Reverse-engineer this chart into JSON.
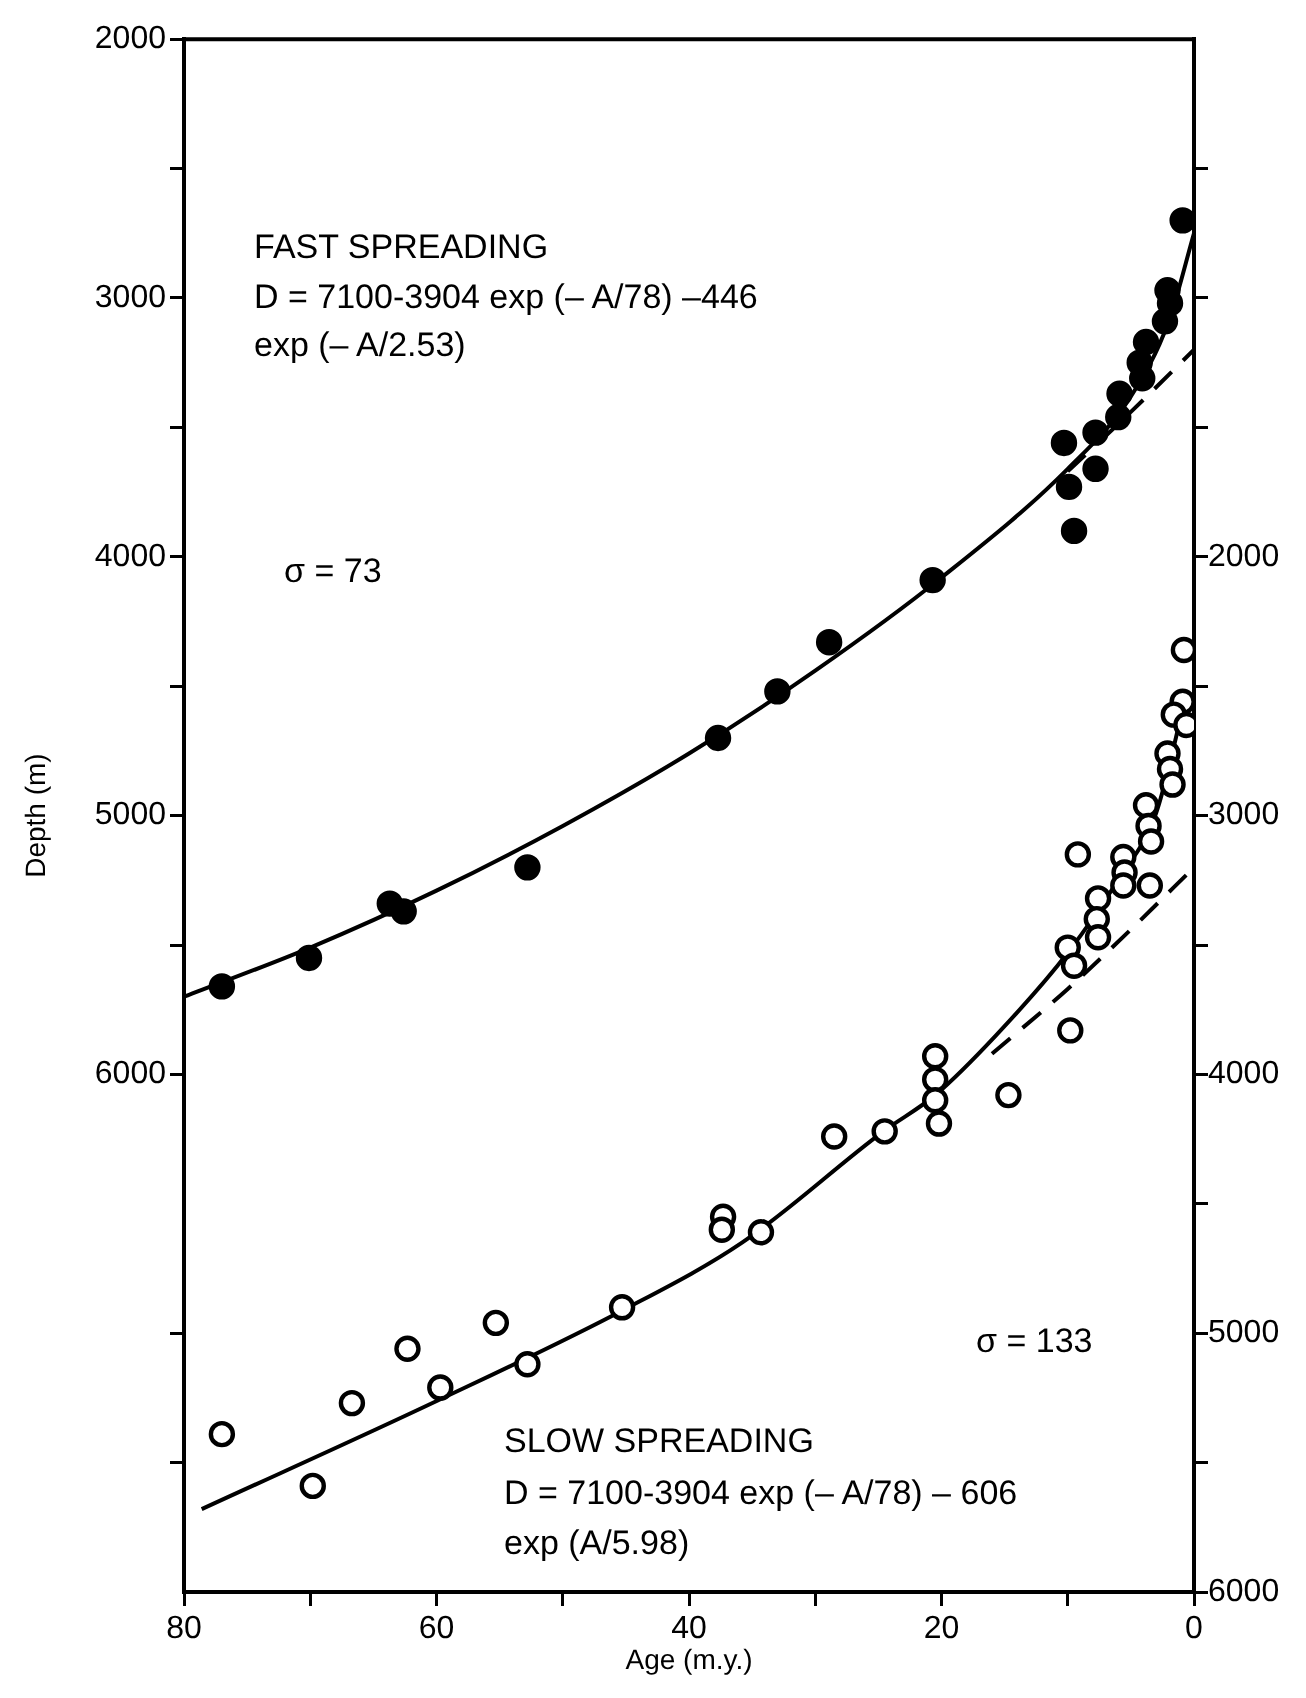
{
  "chart_data": {
    "type": "scatter",
    "xlabel": "Age (m.y.)",
    "ylabel": "Depth (m)",
    "xlim": [
      80,
      0
    ],
    "xticks": [
      80,
      {
        "value": 70,
        "label": null
      },
      60,
      {
        "value": 50,
        "label": null
      },
      40,
      {
        "value": 30,
        "label": null
      },
      20,
      {
        "value": 10,
        "label": null
      },
      0
    ],
    "ylim": [
      8000,
      2000
    ],
    "yticks": [
      2000,
      {
        "value": 2500,
        "label": null
      },
      3000,
      {
        "value": 3500,
        "label": null
      },
      4000,
      {
        "value": 4500,
        "label": null
      },
      5000,
      {
        "value": 5500,
        "label": null
      },
      6000,
      {
        "value": 7000,
        "label": null
      },
      {
        "value": 7500,
        "label": null
      }
    ],
    "y2lim": [
      6000,
      0
    ],
    "y2ticks": [
      {
        "value": 500,
        "label": null
      },
      {
        "value": 1000,
        "label": null
      },
      {
        "value": 1500,
        "label": null
      },
      2000,
      {
        "value": 2500,
        "label": null
      },
      3000,
      {
        "value": 3500,
        "label": null
      },
      4000,
      {
        "value": 4500,
        "label": null
      },
      5000,
      {
        "value": 5500,
        "label": null
      },
      6000
    ],
    "grid": false,
    "legend": false,
    "series": [
      {
        "type": "scatter",
        "marker": "circle",
        "color": "#000000",
        "x": [
          0.9,
          2.1,
          1.9,
          2.3,
          3.8,
          4.3,
          4.1,
          5.9,
          6.0,
          7.8,
          10.3,
          7.8,
          9.9,
          9.5,
          20.7,
          28.9,
          33.0,
          37.7,
          52.8,
          63.7,
          62.6,
          70.1,
          77.0
        ],
        "values": [
          2700,
          2970,
          3020,
          3090,
          3170,
          3250,
          3310,
          3370,
          3460,
          3520,
          3560,
          3660,
          3730,
          3900,
          4090,
          4330,
          4520,
          4700,
          5200,
          5340,
          5370,
          5550,
          5660
        ]
      },
      {
        "type": "line",
        "marker": "none",
        "line_style": "solid",
        "color": "#000000",
        "x": [
          80,
          70,
          60,
          50,
          40,
          30,
          20,
          10,
          5,
          2,
          0
        ],
        "values": [
          5700,
          5510,
          5290,
          5040,
          4760,
          4440,
          4080,
          3660,
          3380,
          3090,
          2750
        ]
      },
      {
        "type": "line",
        "marker": "none",
        "line_style": "dashed",
        "color": "#000000",
        "x": [
          10,
          5,
          0
        ],
        "values": [
          3670,
          3440,
          3200
        ]
      },
      {
        "type": "scatter",
        "marker": "circle",
        "axis": "y2",
        "color": "#ffffff",
        "x": [
          0.8,
          0.9,
          1.6,
          0.6,
          2.1,
          1.9,
          1.7,
          3.8,
          3.6,
          3.4,
          9.2,
          5.6,
          5.5,
          5.6,
          3.5,
          7.6,
          7.7,
          7.6,
          10.0,
          9.5,
          9.8,
          20.5,
          20.5,
          20.5,
          20.2,
          14.7,
          24.5,
          28.5,
          37.3,
          37.4,
          34.3,
          45.3,
          55.3,
          62.3,
          52.8,
          59.7,
          66.7,
          77.0,
          69.8
        ],
        "values": [
          2360,
          2560,
          2610,
          2650,
          2760,
          2820,
          2880,
          2960,
          3040,
          3100,
          3150,
          3160,
          3220,
          3270,
          3270,
          3320,
          3400,
          3470,
          3510,
          3580,
          3830,
          3930,
          4020,
          4100,
          4190,
          4080,
          4220,
          4240,
          4550,
          4600,
          4610,
          4900,
          4960,
          5060,
          5120,
          5210,
          5270,
          5390,
          5590
        ]
      },
      {
        "type": "line",
        "marker": "none",
        "line_style": "solid",
        "axis": "y2",
        "color": "#000000",
        "x": [
          78.6,
          59.9,
          45.2,
          35.8,
          24.6,
          20.5,
          15.7,
          10.0,
          5.9,
          3.0,
          0.6
        ],
        "values": [
          5680,
          5260,
          4910,
          4650,
          4220,
          4080,
          3850,
          3530,
          3240,
          2990,
          2530
        ]
      },
      {
        "type": "line",
        "marker": "none",
        "line_style": "dashed",
        "axis": "y2",
        "color": "#000000",
        "x": [
          16,
          10,
          5,
          0
        ],
        "values": [
          3920,
          3670,
          3440,
          3200
        ]
      }
    ],
    "annotations": [
      "FAST SPREADING",
      "D = 7100-3904 exp (– A/78) –446",
      "exp (– A/2.53)",
      "σ = 73",
      "σ = 133",
      "SLOW SPREADING",
      "D = 7100-3904 exp (– A/78) – 606",
      "exp (A/5.98)"
    ]
  }
}
